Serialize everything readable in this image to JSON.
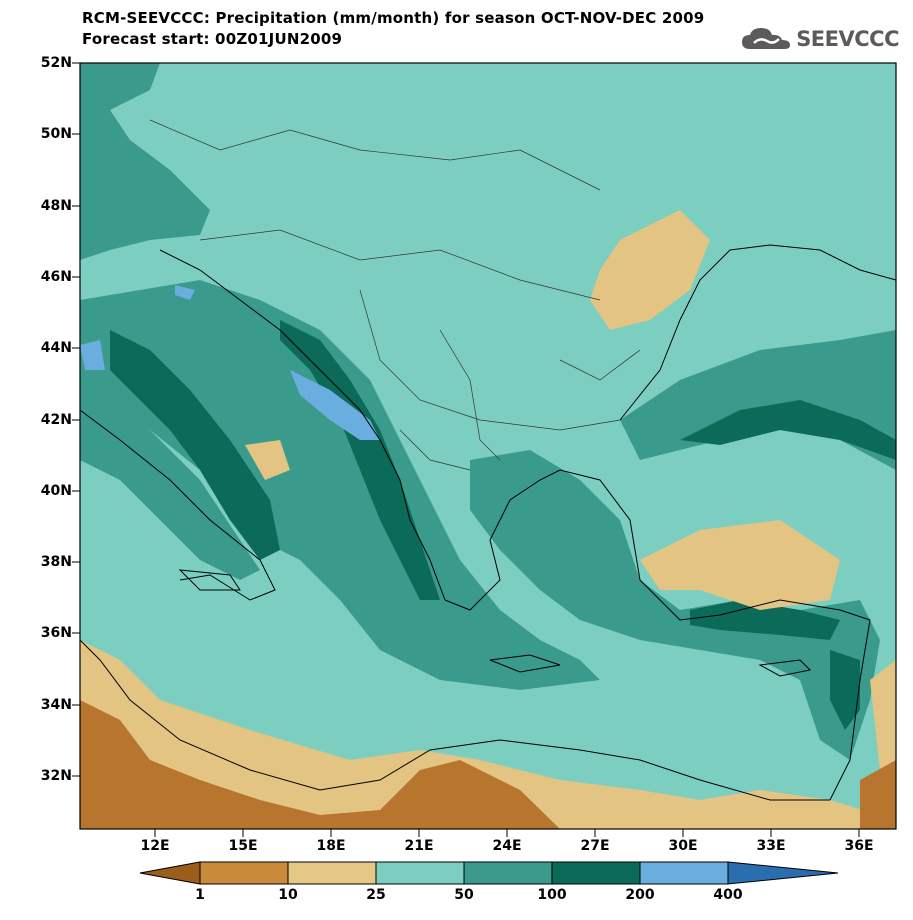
{
  "header": {
    "title_line1": "RCM-SEEVCCC: Precipitation (mm/month) for season OCT-NOV-DEC 2009",
    "title_line2": "Forecast start: 00Z01JUN2009",
    "logo_text": "SEEVCCC"
  },
  "map": {
    "lat_labels": [
      "52N",
      "50N",
      "48N",
      "46N",
      "44N",
      "42N",
      "40N",
      "38N",
      "36N",
      "34N",
      "32N"
    ],
    "lon_labels": [
      "12E",
      "15E",
      "18E",
      "21E",
      "24E",
      "27E",
      "30E",
      "33E",
      "36E"
    ]
  },
  "colorbar": {
    "labels": [
      "1",
      "10",
      "25",
      "50",
      "100",
      "200",
      "400"
    ],
    "colors": [
      "#9c5c1c",
      "#c98a3a",
      "#e6c886",
      "#7ccfc0",
      "#3a9a8c",
      "#0b6b58",
      "#6aaee0",
      "#2a6eb0"
    ]
  },
  "colors": {
    "very_dry": "#b8752e",
    "dry": "#e3c483",
    "moderate": "#7ccfc0",
    "wet": "#3a9a8c",
    "very_wet": "#0b6b58",
    "extreme": "#6aaee0"
  }
}
